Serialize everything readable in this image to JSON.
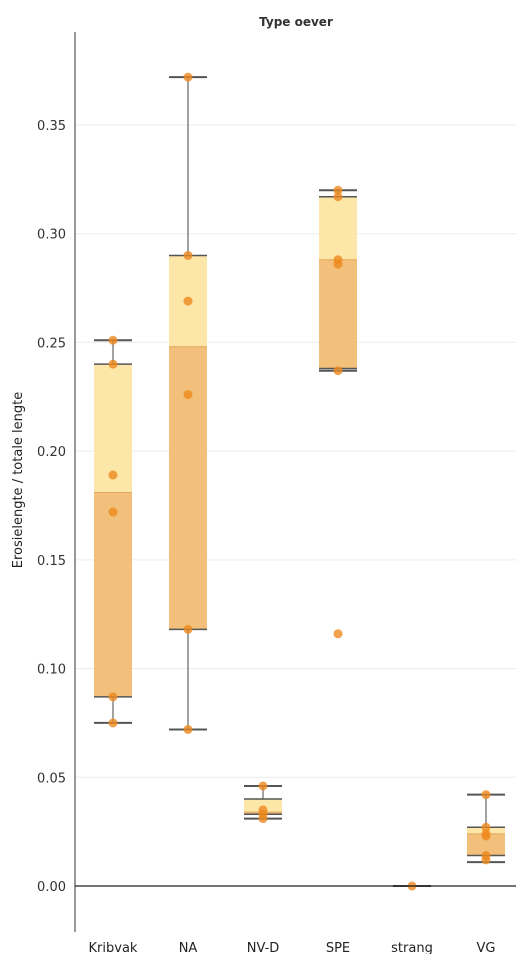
{
  "chart_data": {
    "type": "box",
    "title": "Type oever",
    "ylabel": "Erosielengte / totale lengte",
    "xlabel": "",
    "ylim": [
      -0.02,
      0.39
    ],
    "yticks": [
      0.0,
      0.05,
      0.1,
      0.15,
      0.2,
      0.25,
      0.3,
      0.35
    ],
    "ytick_labels": [
      "0.00",
      "0.05",
      "0.10",
      "0.15",
      "0.20",
      "0.25",
      "0.30",
      "0.35"
    ],
    "grid": true,
    "categories": [
      "Kribvak",
      "NA",
      "NV-D",
      "SPE",
      "strang",
      "VG"
    ],
    "boxes": [
      {
        "category": "Kribvak",
        "whisker_low": 0.075,
        "q1": 0.087,
        "median": 0.181,
        "q3": 0.24,
        "whisker_high": 0.251
      },
      {
        "category": "NA",
        "whisker_low": 0.072,
        "q1": 0.118,
        "median": 0.248,
        "q3": 0.29,
        "whisker_high": 0.372
      },
      {
        "category": "NV-D",
        "whisker_low": 0.031,
        "q1": 0.033,
        "median": 0.034,
        "q3": 0.04,
        "whisker_high": 0.046
      },
      {
        "category": "SPE",
        "whisker_low": 0.237,
        "q1": 0.238,
        "median": 0.288,
        "q3": 0.317,
        "whisker_high": 0.32
      },
      {
        "category": "strang",
        "whisker_low": 0.0,
        "q1": 0.0,
        "median": 0.0,
        "q3": 0.0,
        "whisker_high": 0.0
      },
      {
        "category": "VG",
        "whisker_low": 0.011,
        "q1": 0.014,
        "median": 0.024,
        "q3": 0.027,
        "whisker_high": 0.042
      }
    ],
    "points": [
      {
        "category": "Kribvak",
        "values": [
          0.251,
          0.24,
          0.189,
          0.172,
          0.087,
          0.075
        ]
      },
      {
        "category": "NA",
        "values": [
          0.372,
          0.29,
          0.269,
          0.226,
          0.118,
          0.072
        ]
      },
      {
        "category": "NV-D",
        "values": [
          0.046,
          0.035,
          0.033,
          0.031
        ]
      },
      {
        "category": "SPE",
        "values": [
          0.32,
          0.317,
          0.288,
          0.286,
          0.237,
          0.116
        ]
      },
      {
        "category": "strang",
        "values": [
          0.0
        ]
      },
      {
        "category": "VG",
        "values": [
          0.042,
          0.027,
          0.024,
          0.023,
          0.014,
          0.012
        ]
      }
    ],
    "colors": {
      "box_upper": "#fce6a8",
      "box_lower": "#f2c07a",
      "point": "#ee8a1e",
      "whisker": "#444444",
      "grid": "#ececec",
      "axis": "#222222"
    }
  }
}
